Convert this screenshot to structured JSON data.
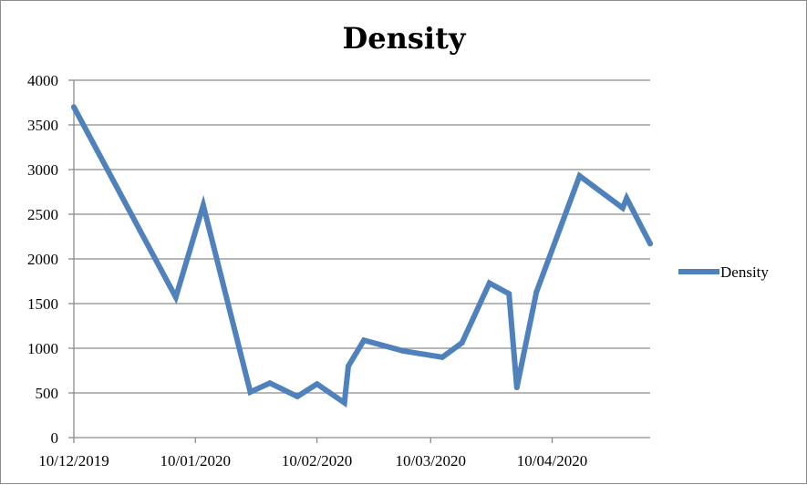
{
  "chart_data": {
    "type": "line",
    "title": "Density",
    "xlabel": "",
    "ylabel": "",
    "ylim": [
      0,
      4000
    ],
    "y_ticks": [
      "0",
      "500",
      "1000",
      "1500",
      "2000",
      "2500",
      "3000",
      "3500",
      "4000"
    ],
    "x_tick_labels": [
      {
        "label": "10/12/2019",
        "date": "2019-12-10"
      },
      {
        "label": "10/01/2020",
        "date": "2020-01-10"
      },
      {
        "label": "10/02/2020",
        "date": "2020-02-10"
      },
      {
        "label": "10/03/2020",
        "date": "2020-03-10"
      },
      {
        "label": "10/04/2020",
        "date": "2020-04-10"
      }
    ],
    "x_range": [
      "2019-12-10",
      "2020-05-05"
    ],
    "grid": true,
    "legend_position": "right",
    "series": [
      {
        "name": "Density",
        "color": "#4f81bd",
        "points": [
          {
            "x": "2019-12-10",
            "y": 3700
          },
          {
            "x": "2020-01-05",
            "y": 1570
          },
          {
            "x": "2020-01-12",
            "y": 2600
          },
          {
            "x": "2020-01-24",
            "y": 510
          },
          {
            "x": "2020-01-29",
            "y": 610
          },
          {
            "x": "2020-02-05",
            "y": 460
          },
          {
            "x": "2020-02-10",
            "y": 600
          },
          {
            "x": "2020-02-17",
            "y": 390
          },
          {
            "x": "2020-02-18",
            "y": 800
          },
          {
            "x": "2020-02-22",
            "y": 1090
          },
          {
            "x": "2020-03-03",
            "y": 970
          },
          {
            "x": "2020-03-13",
            "y": 900
          },
          {
            "x": "2020-03-18",
            "y": 1060
          },
          {
            "x": "2020-03-25",
            "y": 1730
          },
          {
            "x": "2020-03-30",
            "y": 1610
          },
          {
            "x": "2020-04-01",
            "y": 560
          },
          {
            "x": "2020-04-06",
            "y": 1630
          },
          {
            "x": "2020-04-17",
            "y": 2930
          },
          {
            "x": "2020-04-28",
            "y": 2570
          },
          {
            "x": "2020-04-29",
            "y": 2680
          },
          {
            "x": "2020-05-05",
            "y": 2170
          }
        ]
      }
    ]
  }
}
